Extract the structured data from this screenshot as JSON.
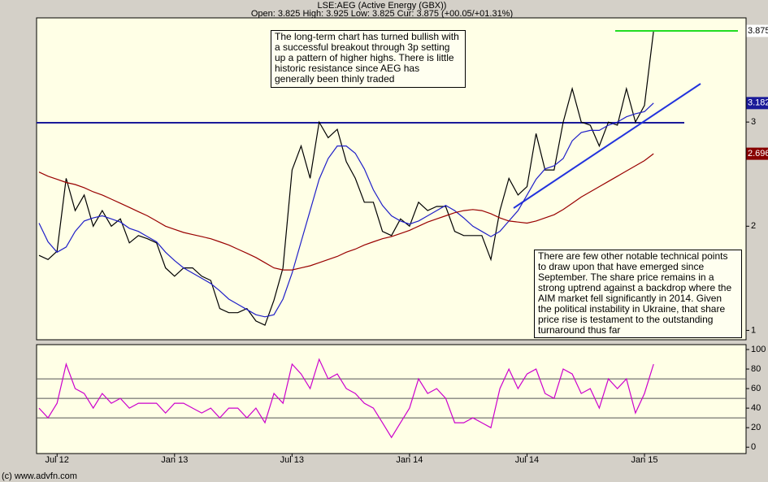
{
  "chart_data": [
    {
      "type": "line",
      "title": "LSE:AEG (Active Energy (GBX))",
      "subtitle": "Open: 3.825 High: 3.925 Low: 3.825 Cur: 3.875 (+00.05/+01.31%)",
      "source": "(c) www.advfn.com",
      "annotations": [
        "The long-term chart has turned bullish with a successful breakout through 3p setting up a pattern of higher highs. There is little historic resistance since AEG has generally been thinly traded",
        "There are few other notable technical points to draw upon that have emerged since September. The share price remains in a strong uptrend against a backdrop where the AIM market fell significantly in 2014. Given the political instability in Ukraine, that share price rise is testament to the outstanding turnaround thus far"
      ],
      "categories": [
        null,
        null,
        "Jul 12",
        null,
        null,
        null,
        null,
        null,
        null,
        null,
        null,
        null,
        null,
        null,
        null,
        "Jan 13",
        null,
        null,
        null,
        null,
        null,
        null,
        null,
        null,
        null,
        null,
        null,
        null,
        "Jul 13",
        null,
        null,
        null,
        null,
        null,
        null,
        null,
        null,
        null,
        null,
        null,
        null,
        "Jan 14",
        null,
        null,
        null,
        null,
        null,
        null,
        null,
        null,
        null,
        null,
        null,
        null,
        "Jul 14",
        null,
        null,
        null,
        null,
        null,
        null,
        null,
        null,
        null,
        null,
        null,
        null,
        "Jan 15",
        null
      ],
      "series": [
        {
          "color": "#000000",
          "values": [
            1.72,
            1.68,
            1.76,
            2.46,
            2.15,
            2.3,
            2.0,
            2.15,
            2.0,
            2.07,
            1.84,
            1.91,
            1.88,
            1.84,
            1.6,
            1.52,
            1.6,
            1.6,
            1.52,
            1.48,
            1.21,
            1.17,
            1.17,
            1.21,
            1.09,
            1.05,
            1.29,
            1.6,
            2.54,
            2.77,
            2.46,
            3.0,
            2.85,
            2.93,
            2.62,
            2.46,
            2.23,
            2.23,
            1.95,
            1.91,
            2.07,
            2.0,
            2.23,
            2.15,
            2.19,
            2.19,
            1.95,
            1.91,
            1.91,
            1.91,
            1.68,
            2.15,
            2.46,
            2.3,
            2.38,
            2.89,
            2.54,
            2.54,
            3.0,
            3.32,
            3.0,
            2.97,
            2.77,
            3.0,
            2.97,
            3.32,
            3.0,
            3.16,
            3.875
          ]
        },
        {
          "color": "#1f1fc8",
          "values": [
            2.03,
            1.85,
            1.75,
            1.8,
            1.95,
            2.05,
            2.08,
            2.1,
            2.07,
            2.04,
            1.98,
            1.95,
            1.9,
            1.85,
            1.75,
            1.67,
            1.6,
            1.55,
            1.5,
            1.45,
            1.38,
            1.3,
            1.25,
            1.2,
            1.15,
            1.13,
            1.15,
            1.3,
            1.55,
            1.85,
            2.15,
            2.45,
            2.65,
            2.77,
            2.77,
            2.7,
            2.55,
            2.35,
            2.2,
            2.1,
            2.05,
            2.02,
            2.05,
            2.1,
            2.15,
            2.2,
            2.15,
            2.08,
            2.0,
            1.95,
            1.9,
            1.95,
            2.05,
            2.15,
            2.3,
            2.45,
            2.55,
            2.58,
            2.65,
            2.82,
            2.9,
            2.92,
            2.92,
            2.97,
            3.0,
            3.05,
            3.08,
            3.1,
            3.182
          ]
        },
        {
          "color": "#990000",
          "values": [
            2.52,
            2.48,
            2.45,
            2.42,
            2.4,
            2.37,
            2.33,
            2.3,
            2.26,
            2.22,
            2.18,
            2.14,
            2.1,
            2.05,
            2.0,
            1.97,
            1.94,
            1.92,
            1.9,
            1.88,
            1.85,
            1.82,
            1.78,
            1.74,
            1.7,
            1.65,
            1.6,
            1.58,
            1.58,
            1.6,
            1.62,
            1.65,
            1.68,
            1.71,
            1.75,
            1.78,
            1.82,
            1.85,
            1.88,
            1.9,
            1.93,
            1.96,
            2.0,
            2.04,
            2.07,
            2.1,
            2.13,
            2.15,
            2.16,
            2.15,
            2.12,
            2.08,
            2.05,
            2.04,
            2.03,
            2.05,
            2.08,
            2.11,
            2.16,
            2.22,
            2.28,
            2.33,
            2.38,
            2.43,
            2.48,
            2.53,
            2.58,
            2.63,
            2.696
          ]
        }
      ],
      "ylim": [
        0.91,
        4.0
      ],
      "yticks": [
        1,
        2,
        3
      ]
    },
    {
      "type": "line",
      "series": [
        {
          "color": "#cc00cc",
          "values": [
            40,
            30,
            45,
            85,
            60,
            55,
            40,
            55,
            45,
            50,
            40,
            45,
            45,
            45,
            35,
            45,
            45,
            40,
            35,
            40,
            30,
            40,
            40,
            30,
            40,
            25,
            55,
            45,
            85,
            75,
            60,
            90,
            70,
            75,
            60,
            55,
            45,
            40,
            25,
            10,
            25,
            40,
            70,
            55,
            60,
            50,
            25,
            25,
            30,
            25,
            20,
            60,
            80,
            60,
            75,
            80,
            55,
            50,
            80,
            75,
            55,
            60,
            40,
            70,
            60,
            70,
            35,
            55,
            85
          ]
        }
      ],
      "reference_lines": [
        30,
        50,
        70
      ],
      "ylim": [
        -6.5,
        105
      ],
      "yticks": [
        0,
        20,
        40,
        60,
        80,
        100
      ]
    }
  ]
}
